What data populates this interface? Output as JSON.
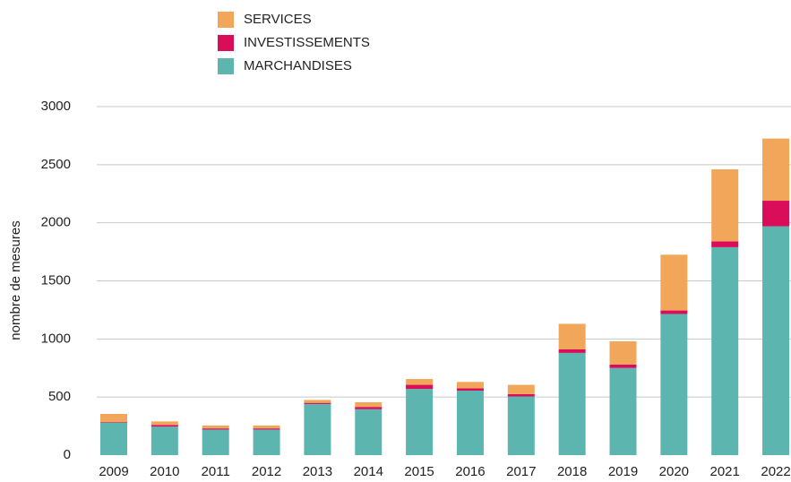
{
  "chart_data": {
    "type": "stacked_bar",
    "y_label": "nombre de mesures",
    "categories": [
      "2009",
      "2010",
      "2011",
      "2012",
      "2013",
      "2014",
      "2015",
      "2016",
      "2017",
      "2018",
      "2019",
      "2020",
      "2021",
      "2022"
    ],
    "series": [
      {
        "name": "SERVICES",
        "color": "#f2a65a",
        "values": [
          70,
          30,
          25,
          25,
          25,
          40,
          50,
          55,
          80,
          220,
          200,
          480,
          620,
          535
        ]
      },
      {
        "name": "INVESTISSEMENTS",
        "color": "#d90d59",
        "values": [
          5,
          15,
          10,
          10,
          10,
          20,
          35,
          20,
          20,
          30,
          30,
          30,
          50,
          220
        ]
      },
      {
        "name": "MARCHANDISES",
        "color": "#5db5b0",
        "values": [
          280,
          245,
          220,
          220,
          440,
          395,
          570,
          555,
          505,
          880,
          750,
          1215,
          1790,
          1970
        ]
      }
    ],
    "ylim": [
      0,
      3000
    ],
    "yticks": [
      0,
      500,
      1000,
      1500,
      2000,
      2500,
      3000
    ],
    "grid": true
  }
}
